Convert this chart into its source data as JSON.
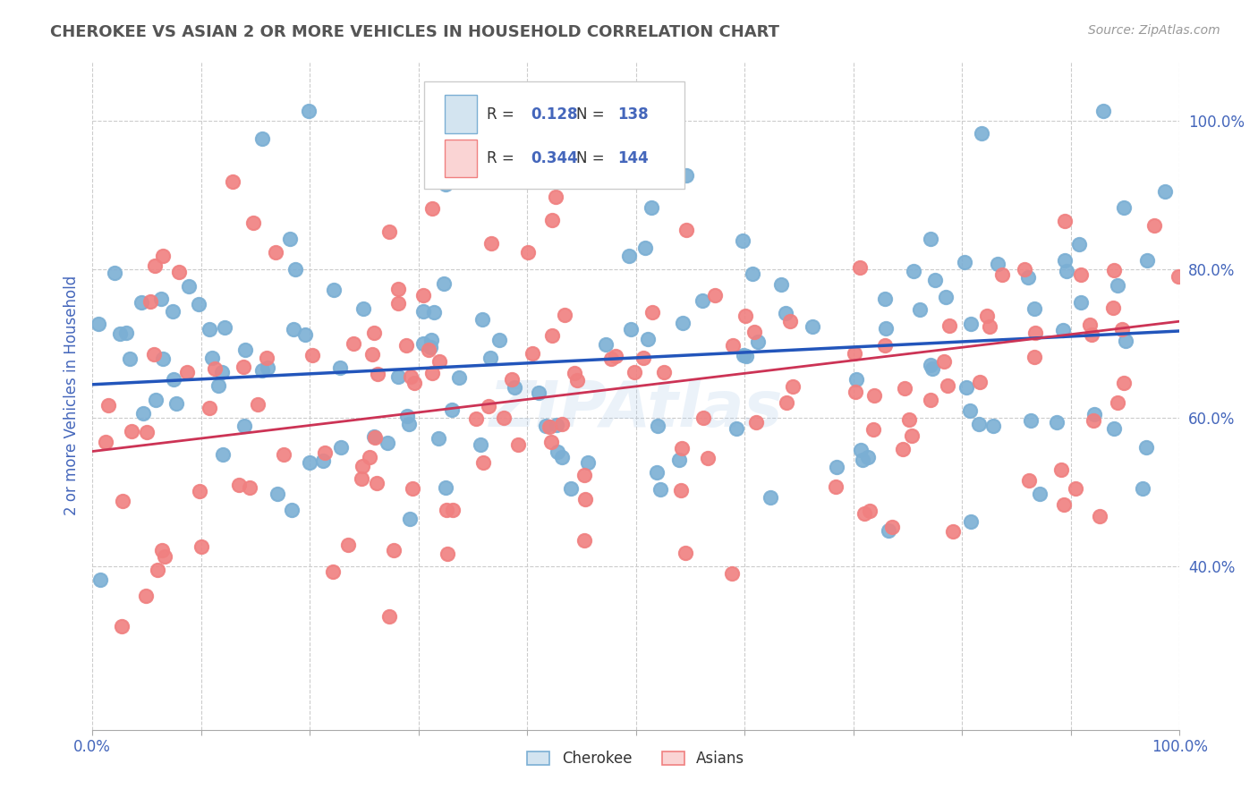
{
  "title": "CHEROKEE VS ASIAN 2 OR MORE VEHICLES IN HOUSEHOLD CORRELATION CHART",
  "source": "Source: ZipAtlas.com",
  "ylabel": "2 or more Vehicles in Household",
  "xlim": [
    0.0,
    1.0
  ],
  "ylim": [
    0.18,
    1.08
  ],
  "cherokee_color": "#7bafd4",
  "asian_color": "#f08080",
  "cherokee_line_color": "#2255bb",
  "asian_line_color": "#cc3355",
  "cherokee_R": 0.128,
  "cherokee_N": 138,
  "asian_R": 0.344,
  "asian_N": 144,
  "watermark": "ZipAtlas",
  "legend_label_cherokee": "Cherokee",
  "legend_label_asian": "Asians",
  "background_color": "#ffffff",
  "grid_color": "#cccccc",
  "title_color": "#555555",
  "axis_label_color": "#4466bb",
  "tick_label_color": "#4466bb",
  "cherokee_seed": 42,
  "asian_seed": 77,
  "dot_size": 120,
  "dot_linewidth": 1.5,
  "yticks": [
    0.4,
    0.6,
    0.8,
    1.0
  ],
  "ytick_labels": [
    "40.0%",
    "60.0%",
    "80.0%",
    "100.0%"
  ],
  "xtick_labels_show": [
    "0.0%",
    "100.0%"
  ],
  "cherokee_line_intercept": 0.645,
  "cherokee_line_slope": 0.072,
  "asian_line_intercept": 0.555,
  "asian_line_slope": 0.175
}
